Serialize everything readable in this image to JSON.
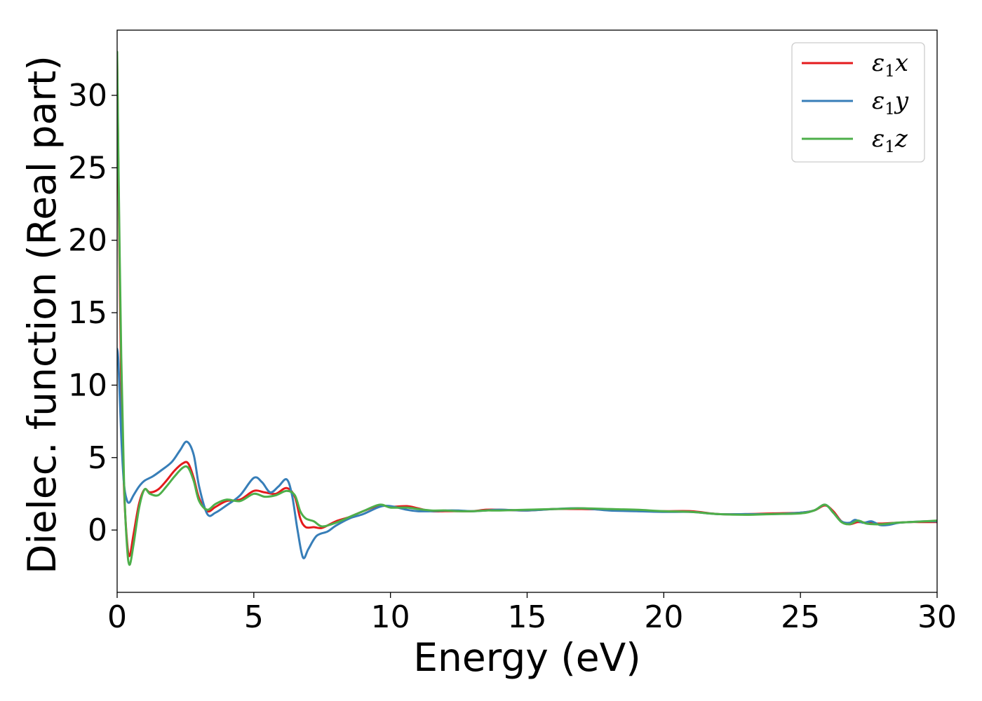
{
  "chart_data": {
    "type": "line",
    "xlabel": "Energy (eV)",
    "ylabel": "Dielec. function (Real part)",
    "xlim": [
      0,
      30
    ],
    "ylim": [
      -4.3,
      34.5
    ],
    "xticks": [
      0,
      5,
      10,
      15,
      20,
      25,
      30
    ],
    "yticks": [
      0,
      5,
      10,
      15,
      20,
      25,
      30
    ],
    "grid": false,
    "legend_position": "top-right",
    "series": [
      {
        "name": "x",
        "legend_symbol": "ε",
        "legend_subscript": "1",
        "color": "#e41a1c",
        "x": [
          0,
          0.05,
          0.15,
          0.25,
          0.35,
          0.45,
          0.6,
          0.8,
          1.0,
          1.2,
          1.5,
          1.8,
          2.1,
          2.4,
          2.6,
          2.8,
          3.0,
          3.3,
          3.6,
          4.0,
          4.5,
          5.0,
          5.4,
          5.8,
          6.2,
          6.5,
          6.7,
          6.9,
          7.2,
          7.5,
          8.0,
          8.5,
          9.0,
          9.6,
          10.0,
          10.6,
          11.0,
          11.5,
          12.0,
          12.5,
          13.0,
          13.5,
          14.0,
          15.0,
          16.0,
          17.0,
          18.0,
          19.0,
          20.0,
          21.0,
          22.0,
          23.0,
          24.0,
          25.0,
          25.5,
          25.9,
          26.2,
          26.5,
          26.8,
          27.1,
          27.4,
          27.7,
          28.0,
          28.5,
          29.0,
          29.5,
          30.0
        ],
        "y": [
          32.5,
          24,
          10,
          3,
          -0.5,
          -1.8,
          -0.3,
          1.8,
          2.8,
          2.6,
          2.8,
          3.4,
          4.1,
          4.6,
          4.6,
          3.6,
          2.2,
          1.3,
          1.6,
          2.0,
          2.1,
          2.7,
          2.6,
          2.5,
          2.9,
          2.3,
          0.8,
          0.2,
          0.2,
          0.15,
          0.6,
          0.9,
          1.3,
          1.7,
          1.6,
          1.65,
          1.5,
          1.3,
          1.3,
          1.3,
          1.3,
          1.4,
          1.4,
          1.35,
          1.45,
          1.45,
          1.4,
          1.35,
          1.3,
          1.3,
          1.1,
          1.1,
          1.15,
          1.2,
          1.35,
          1.7,
          1.3,
          0.6,
          0.4,
          0.55,
          0.5,
          0.45,
          0.45,
          0.5,
          0.55,
          0.55,
          0.55
        ]
      },
      {
        "name": "y",
        "legend_symbol": "ε",
        "legend_subscript": "1",
        "color": "#377eb8",
        "x": [
          0,
          0.05,
          0.15,
          0.25,
          0.35,
          0.45,
          0.6,
          0.8,
          1.0,
          1.3,
          1.6,
          2.0,
          2.3,
          2.55,
          2.8,
          3.0,
          3.3,
          3.6,
          4.0,
          4.5,
          5.0,
          5.3,
          5.6,
          5.9,
          6.2,
          6.4,
          6.6,
          6.8,
          7.0,
          7.3,
          7.7,
          8.0,
          8.5,
          9.0,
          9.6,
          10.0,
          10.6,
          11.0,
          11.5,
          12.0,
          12.5,
          13.0,
          13.5,
          14.0,
          15.0,
          16.0,
          17.0,
          18.0,
          19.0,
          20.0,
          21.0,
          22.0,
          23.0,
          24.0,
          25.0,
          25.5,
          25.9,
          26.2,
          26.5,
          26.8,
          27.0,
          27.3,
          27.6,
          27.9,
          28.2,
          28.6,
          29.0,
          29.5,
          30.0
        ],
        "y": [
          12.5,
          11.5,
          6.5,
          3.2,
          2.1,
          1.9,
          2.4,
          3.0,
          3.4,
          3.7,
          4.1,
          4.7,
          5.5,
          6.1,
          5.2,
          3.0,
          1.1,
          1.2,
          1.7,
          2.4,
          3.6,
          3.3,
          2.6,
          3.0,
          3.5,
          2.4,
          0.0,
          -1.9,
          -1.3,
          -0.4,
          -0.1,
          0.3,
          0.8,
          1.1,
          1.6,
          1.65,
          1.4,
          1.3,
          1.3,
          1.35,
          1.35,
          1.3,
          1.35,
          1.4,
          1.35,
          1.45,
          1.5,
          1.35,
          1.3,
          1.25,
          1.25,
          1.1,
          1.1,
          1.1,
          1.2,
          1.35,
          1.75,
          1.2,
          0.6,
          0.5,
          0.7,
          0.5,
          0.6,
          0.35,
          0.35,
          0.5,
          0.55,
          0.6,
          0.6
        ]
      },
      {
        "name": "z",
        "legend_symbol": "ε",
        "legend_subscript": "1",
        "color": "#4daf4a",
        "x": [
          0,
          0.05,
          0.15,
          0.25,
          0.35,
          0.45,
          0.6,
          0.8,
          1.0,
          1.2,
          1.5,
          1.8,
          2.1,
          2.4,
          2.6,
          2.8,
          3.0,
          3.3,
          3.6,
          4.0,
          4.5,
          5.0,
          5.4,
          5.8,
          6.2,
          6.5,
          6.7,
          6.9,
          7.2,
          7.5,
          8.0,
          8.5,
          9.0,
          9.6,
          10.0,
          10.6,
          11.0,
          11.5,
          12.0,
          12.5,
          13.0,
          13.5,
          14.0,
          15.0,
          16.0,
          17.0,
          18.0,
          19.0,
          20.0,
          21.0,
          22.0,
          23.0,
          24.0,
          25.0,
          25.5,
          25.9,
          26.2,
          26.5,
          26.8,
          27.1,
          27.4,
          27.7,
          28.0,
          28.5,
          29.0,
          29.5,
          30.0
        ],
        "y": [
          33.0,
          25,
          12,
          3.5,
          -0.8,
          -2.4,
          -1.0,
          1.5,
          2.8,
          2.5,
          2.4,
          3.0,
          3.7,
          4.3,
          4.3,
          3.4,
          2.0,
          1.4,
          1.8,
          2.1,
          2.0,
          2.5,
          2.3,
          2.4,
          2.7,
          2.4,
          1.3,
          0.8,
          0.6,
          0.25,
          0.5,
          0.9,
          1.3,
          1.75,
          1.55,
          1.55,
          1.45,
          1.35,
          1.35,
          1.3,
          1.3,
          1.35,
          1.35,
          1.4,
          1.45,
          1.5,
          1.45,
          1.4,
          1.3,
          1.25,
          1.1,
          1.05,
          1.1,
          1.15,
          1.35,
          1.75,
          1.2,
          0.55,
          0.4,
          0.65,
          0.45,
          0.4,
          0.4,
          0.5,
          0.55,
          0.6,
          0.65
        ]
      }
    ]
  }
}
